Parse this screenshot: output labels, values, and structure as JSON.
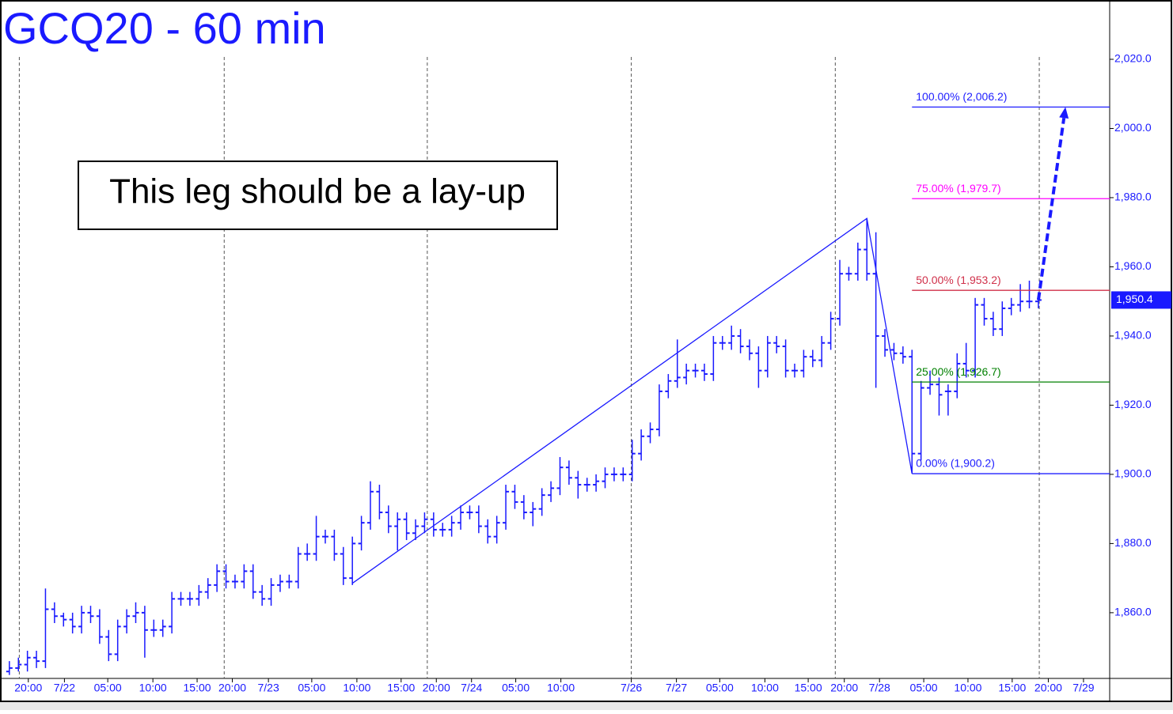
{
  "chart_data": {
    "type": "ohlc",
    "title": "GCQ20 - 60 min",
    "annotation": "This leg should be a lay-up",
    "color": "#1a1aff",
    "ohlc": [
      [
        1843,
        1846,
        1842,
        1844
      ],
      [
        1844,
        1847,
        1843,
        1845
      ],
      [
        1845,
        1849,
        1843,
        1847
      ],
      [
        1847,
        1849,
        1844,
        1846
      ],
      [
        1846,
        1867,
        1844,
        1861
      ],
      [
        1861,
        1863,
        1857,
        1859
      ],
      [
        1859,
        1860,
        1856,
        1858
      ],
      [
        1858,
        1860,
        1854,
        1856
      ],
      [
        1856,
        1862,
        1854,
        1860
      ],
      [
        1860,
        1862,
        1857,
        1859
      ],
      [
        1859,
        1861,
        1851,
        1853
      ],
      [
        1853,
        1855,
        1846,
        1848
      ],
      [
        1848,
        1858,
        1846,
        1856
      ],
      [
        1856,
        1861,
        1854,
        1859
      ],
      [
        1859,
        1863,
        1857,
        1860
      ],
      [
        1860,
        1862,
        1847,
        1855
      ],
      [
        1855,
        1858,
        1853,
        1855
      ],
      [
        1855,
        1858,
        1853,
        1856
      ],
      [
        1856,
        1866,
        1854,
        1864
      ],
      [
        1864,
        1866,
        1862,
        1864
      ],
      [
        1864,
        1866,
        1862,
        1864
      ],
      [
        1864,
        1868,
        1862,
        1866
      ],
      [
        1866,
        1870,
        1864,
        1868
      ],
      [
        1868,
        1874,
        1866,
        1872
      ],
      [
        1872,
        1874,
        1867,
        1869
      ],
      [
        1869,
        1871,
        1867,
        1869
      ],
      [
        1869,
        1874,
        1867,
        1872
      ],
      [
        1872,
        1874,
        1864,
        1866
      ],
      [
        1866,
        1868,
        1862,
        1864
      ],
      [
        1864,
        1870,
        1862,
        1868
      ],
      [
        1868,
        1871,
        1866,
        1869
      ],
      [
        1869,
        1871,
        1867,
        1869
      ],
      [
        1869,
        1879,
        1867,
        1877
      ],
      [
        1877,
        1880,
        1875,
        1877
      ],
      [
        1877,
        1888,
        1875,
        1882
      ],
      [
        1882,
        1884,
        1880,
        1882
      ],
      [
        1882,
        1884,
        1875,
        1877
      ],
      [
        1877,
        1879,
        1868,
        1870
      ],
      [
        1870,
        1882,
        1868,
        1880
      ],
      [
        1880,
        1888,
        1878,
        1886
      ],
      [
        1886,
        1898,
        1884,
        1895
      ],
      [
        1895,
        1897,
        1887,
        1889
      ],
      [
        1889,
        1891,
        1883,
        1885
      ],
      [
        1885,
        1889,
        1878,
        1887
      ],
      [
        1887,
        1889,
        1881,
        1883
      ],
      [
        1883,
        1887,
        1881,
        1885
      ],
      [
        1885,
        1889,
        1883,
        1887
      ],
      [
        1887,
        1889,
        1882,
        1884
      ],
      [
        1884,
        1886,
        1882,
        1884
      ],
      [
        1884,
        1888,
        1882,
        1886
      ],
      [
        1886,
        1891,
        1884,
        1889
      ],
      [
        1889,
        1891,
        1887,
        1889
      ],
      [
        1889,
        1891,
        1883,
        1885
      ],
      [
        1885,
        1887,
        1880,
        1882
      ],
      [
        1882,
        1888,
        1880,
        1886
      ],
      [
        1886,
        1897,
        1884,
        1895
      ],
      [
        1895,
        1897,
        1890,
        1892
      ],
      [
        1892,
        1894,
        1887,
        1889
      ],
      [
        1889,
        1892,
        1885,
        1890
      ],
      [
        1890,
        1896,
        1888,
        1894
      ],
      [
        1894,
        1898,
        1892,
        1896
      ],
      [
        1896,
        1905,
        1894,
        1902
      ],
      [
        1902,
        1904,
        1897,
        1899
      ],
      [
        1899,
        1901,
        1893,
        1897
      ],
      [
        1897,
        1899,
        1895,
        1897
      ],
      [
        1897,
        1900,
        1895,
        1898
      ],
      [
        1898,
        1902,
        1896,
        1900
      ],
      [
        1900,
        1902,
        1898,
        1900
      ],
      [
        1900,
        1902,
        1898,
        1900
      ],
      [
        1900,
        1910,
        1898,
        1906
      ],
      [
        1906,
        1913,
        1904,
        1911
      ],
      [
        1911,
        1915,
        1909,
        1913
      ],
      [
        1913,
        1926,
        1911,
        1924
      ],
      [
        1924,
        1929,
        1922,
        1927
      ],
      [
        1927,
        1939,
        1925,
        1928
      ],
      [
        1928,
        1932,
        1926,
        1930
      ],
      [
        1930,
        1932,
        1928,
        1930
      ],
      [
        1930,
        1932,
        1927,
        1929
      ],
      [
        1929,
        1940,
        1927,
        1938
      ],
      [
        1938,
        1940,
        1936,
        1938
      ],
      [
        1938,
        1943,
        1936,
        1940
      ],
      [
        1940,
        1942,
        1935,
        1937
      ],
      [
        1937,
        1939,
        1933,
        1935
      ],
      [
        1935,
        1937,
        1925,
        1930
      ],
      [
        1930,
        1940,
        1928,
        1938
      ],
      [
        1938,
        1940,
        1935,
        1937
      ],
      [
        1937,
        1939,
        1928,
        1930
      ],
      [
        1930,
        1932,
        1928,
        1930
      ],
      [
        1930,
        1936,
        1928,
        1934
      ],
      [
        1934,
        1936,
        1931,
        1933
      ],
      [
        1933,
        1940,
        1931,
        1938
      ],
      [
        1938,
        1947,
        1936,
        1945
      ],
      [
        1945,
        1962,
        1943,
        1958
      ],
      [
        1958,
        1960,
        1956,
        1958
      ],
      [
        1958,
        1967,
        1956,
        1965
      ],
      [
        1965,
        1974,
        1956,
        1958
      ],
      [
        1958,
        1970,
        1925,
        1940
      ],
      [
        1940,
        1942,
        1934,
        1936
      ],
      [
        1936,
        1938,
        1933,
        1935
      ],
      [
        1935,
        1937,
        1932,
        1934
      ],
      [
        1934,
        1936,
        1900.2,
        1906
      ],
      [
        1906,
        1927,
        1904,
        1925
      ],
      [
        1925,
        1930,
        1923,
        1926
      ],
      [
        1926,
        1928,
        1917,
        1923
      ],
      [
        1924,
        1926,
        1917,
        1924
      ],
      [
        1924,
        1935,
        1922,
        1932
      ],
      [
        1932,
        1938,
        1928,
        1930
      ],
      [
        1930,
        1951,
        1928,
        1949
      ],
      [
        1949,
        1951,
        1943,
        1945
      ],
      [
        1945,
        1947,
        1940,
        1942
      ],
      [
        1942,
        1950,
        1940,
        1948
      ],
      [
        1948,
        1951,
        1946,
        1949
      ],
      [
        1949,
        1955,
        1947,
        1950
      ],
      [
        1950,
        1956,
        1948,
        1950
      ],
      [
        1950,
        1952,
        1948,
        1950.4
      ]
    ],
    "xlim": [
      -0.6,
      121.9
    ],
    "ylim": [
      1841,
      2036
    ],
    "yticks": [
      {
        "value": 1860,
        "label": "1,860.0"
      },
      {
        "value": 1880,
        "label": "1,880.0"
      },
      {
        "value": 1900,
        "label": "1,900.0"
      },
      {
        "value": 1920,
        "label": "1,920.0"
      },
      {
        "value": 1940,
        "label": "1,940.0"
      },
      {
        "value": 1960,
        "label": "1,960.0"
      },
      {
        "value": 1980,
        "label": "1,980.0"
      },
      {
        "value": 2000,
        "label": "2,000.0"
      },
      {
        "value": 2020,
        "label": "2,020.0"
      }
    ],
    "xticks": [
      {
        "value": 2.1,
        "label": "20:00"
      },
      {
        "value": 6.1,
        "label": "7/22"
      },
      {
        "value": 10.9,
        "label": "05:00"
      },
      {
        "value": 15.9,
        "label": "10:00"
      },
      {
        "value": 20.8,
        "label": "15:00"
      },
      {
        "value": 24.7,
        "label": "20:00"
      },
      {
        "value": 28.7,
        "label": "7/23"
      },
      {
        "value": 33.5,
        "label": "05:00"
      },
      {
        "value": 38.5,
        "label": "10:00"
      },
      {
        "value": 43.4,
        "label": "15:00"
      },
      {
        "value": 47.3,
        "label": "20:00"
      },
      {
        "value": 51.2,
        "label": "7/24"
      },
      {
        "value": 56.1,
        "label": "05:00"
      },
      {
        "value": 61.1,
        "label": "10:00"
      },
      {
        "value": 68.9,
        "label": "7/26"
      },
      {
        "value": 73.9,
        "label": "7/27"
      },
      {
        "value": 78.7,
        "label": "05:00"
      },
      {
        "value": 83.7,
        "label": "10:00"
      },
      {
        "value": 88.5,
        "label": "15:00"
      },
      {
        "value": 92.5,
        "label": "20:00"
      },
      {
        "value": 96.4,
        "label": "7/28"
      },
      {
        "value": 101.3,
        "label": "05:00"
      },
      {
        "value": 106.2,
        "label": "10:00"
      },
      {
        "value": 111.1,
        "label": "15:00"
      },
      {
        "value": 115.1,
        "label": "20:00"
      },
      {
        "value": 119,
        "label": "7/29"
      }
    ],
    "separators": [
      1.1,
      23.8,
      46.3,
      68.9,
      91.5,
      114.1
    ],
    "trendline": {
      "x": [
        38,
        95,
        100
      ],
      "y": [
        1868.5,
        1974,
        1900.2
      ]
    },
    "fib_start": 100,
    "fib_levels": [
      {
        "value": 1900.2,
        "label": "0.00% (1,900.2)",
        "color": "#2020ff"
      },
      {
        "value": 1926.7,
        "label": "25.00% (1,926.7)",
        "color": "#008000"
      },
      {
        "value": 1953.2,
        "label": "50.00% (1,953.2)",
        "color": "#d0304a"
      },
      {
        "value": 1979.7,
        "label": "75.00% (1,979.7)",
        "color": "#ff00ff"
      },
      {
        "value": 2006.2,
        "label": "100.00% (2,006.2)",
        "color": "#2020ff"
      }
    ],
    "projection": {
      "x": [
        114,
        117
      ],
      "y": [
        1950.4,
        2006.2
      ]
    },
    "last_price": {
      "value": 1950.4,
      "label": "1,950.4"
    }
  }
}
